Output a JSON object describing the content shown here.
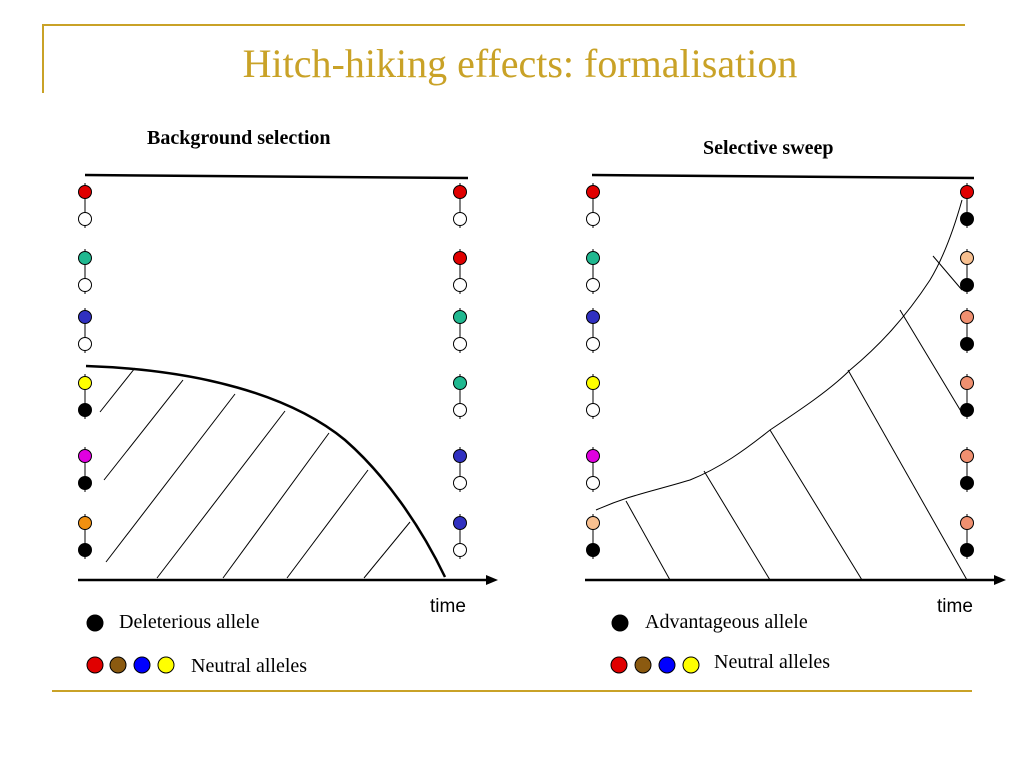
{
  "title": "Hitch-hiking effects: formalisation",
  "panels": {
    "left": {
      "label": "Background selection",
      "time_label": "time",
      "legend": {
        "black": "Deleterious allele",
        "neutral": "Neutral alleles"
      }
    },
    "right": {
      "label": "Selective sweep",
      "time_label": "time",
      "legend": {
        "black": "Advantageous allele",
        "neutral": "Neutral alleles"
      }
    }
  },
  "colors": {
    "accent": "#c9a227",
    "red": "#e00000",
    "green": "#20b890",
    "blue": "#3030c0",
    "yellow": "#ffff00",
    "magenta": "#e000e0",
    "orange": "#f09010",
    "peach": "#f8c090",
    "salmon": "#f09070",
    "brown": "#8b5a10",
    "legend_blue": "#0000ff",
    "black": "#000000"
  }
}
